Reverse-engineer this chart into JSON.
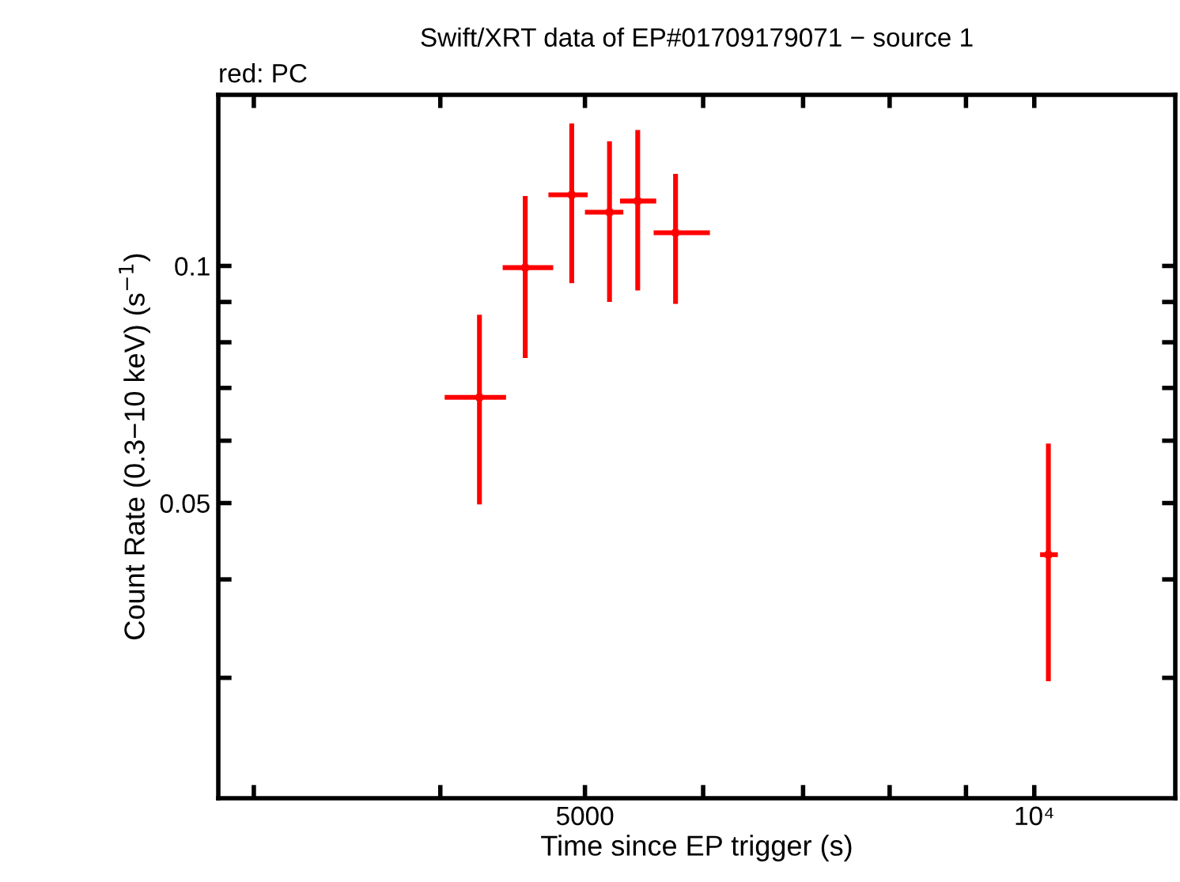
{
  "chart_data": {
    "type": "scatter",
    "title": "Swift/XRT data of EP#01709179071 − source 1",
    "xlabel": "Time since EP trigger (s)",
    "ylabel": "Count Rate (0.3−10 keV) (s$^{−1}$)",
    "annotations": [
      "red: PC"
    ],
    "log": "xy",
    "grid": false,
    "legend": false,
    "xlim": [
      2840,
      12430
    ],
    "ylim": [
      0.0211,
      0.1649
    ],
    "xticks": [
      {
        "value": 3000,
        "label": null
      },
      {
        "value": 4000,
        "label": null
      },
      5000,
      {
        "value": 6000,
        "label": null
      },
      {
        "value": 7000,
        "label": null
      },
      {
        "value": 8000,
        "label": null
      },
      {
        "value": 9000,
        "label": null
      },
      {
        "value": 10000,
        "label": "10⁴"
      }
    ],
    "yticks": [
      {
        "value": 0.03,
        "label": null
      },
      {
        "value": 0.04,
        "label": null
      },
      0.05,
      {
        "value": 0.06,
        "label": null
      },
      {
        "value": 0.07,
        "label": null
      },
      {
        "value": 0.08,
        "label": null
      },
      {
        "value": 0.09,
        "label": null
      },
      0.1
    ],
    "series": [
      {
        "color": "#ff0000",
        "x": [
          4249,
          4560,
          4899,
          5193,
          5424,
          5750,
          10220
        ],
        "values": [
          0.0681,
          0.0995,
          0.1231,
          0.117,
          0.1209,
          0.1102,
          0.043
        ],
        "errors": [
          [
            0.0498,
            0.0867
          ],
          [
            0.0764,
            0.1227
          ],
          [
            0.0951,
            0.1516
          ],
          [
            0.09,
            0.144
          ],
          [
            0.0931,
            0.1488
          ],
          [
            0.0895,
            0.1309
          ],
          [
            0.0297,
            0.0595
          ]
        ],
        "xerrors": [
          [
            4027,
            4427
          ],
          [
            4404,
            4761
          ],
          [
            4726,
            5021
          ],
          [
            5000,
            5305
          ],
          [
            5278,
            5581
          ],
          [
            5559,
            6063
          ],
          [
            10090,
            10370
          ]
        ]
      }
    ]
  }
}
